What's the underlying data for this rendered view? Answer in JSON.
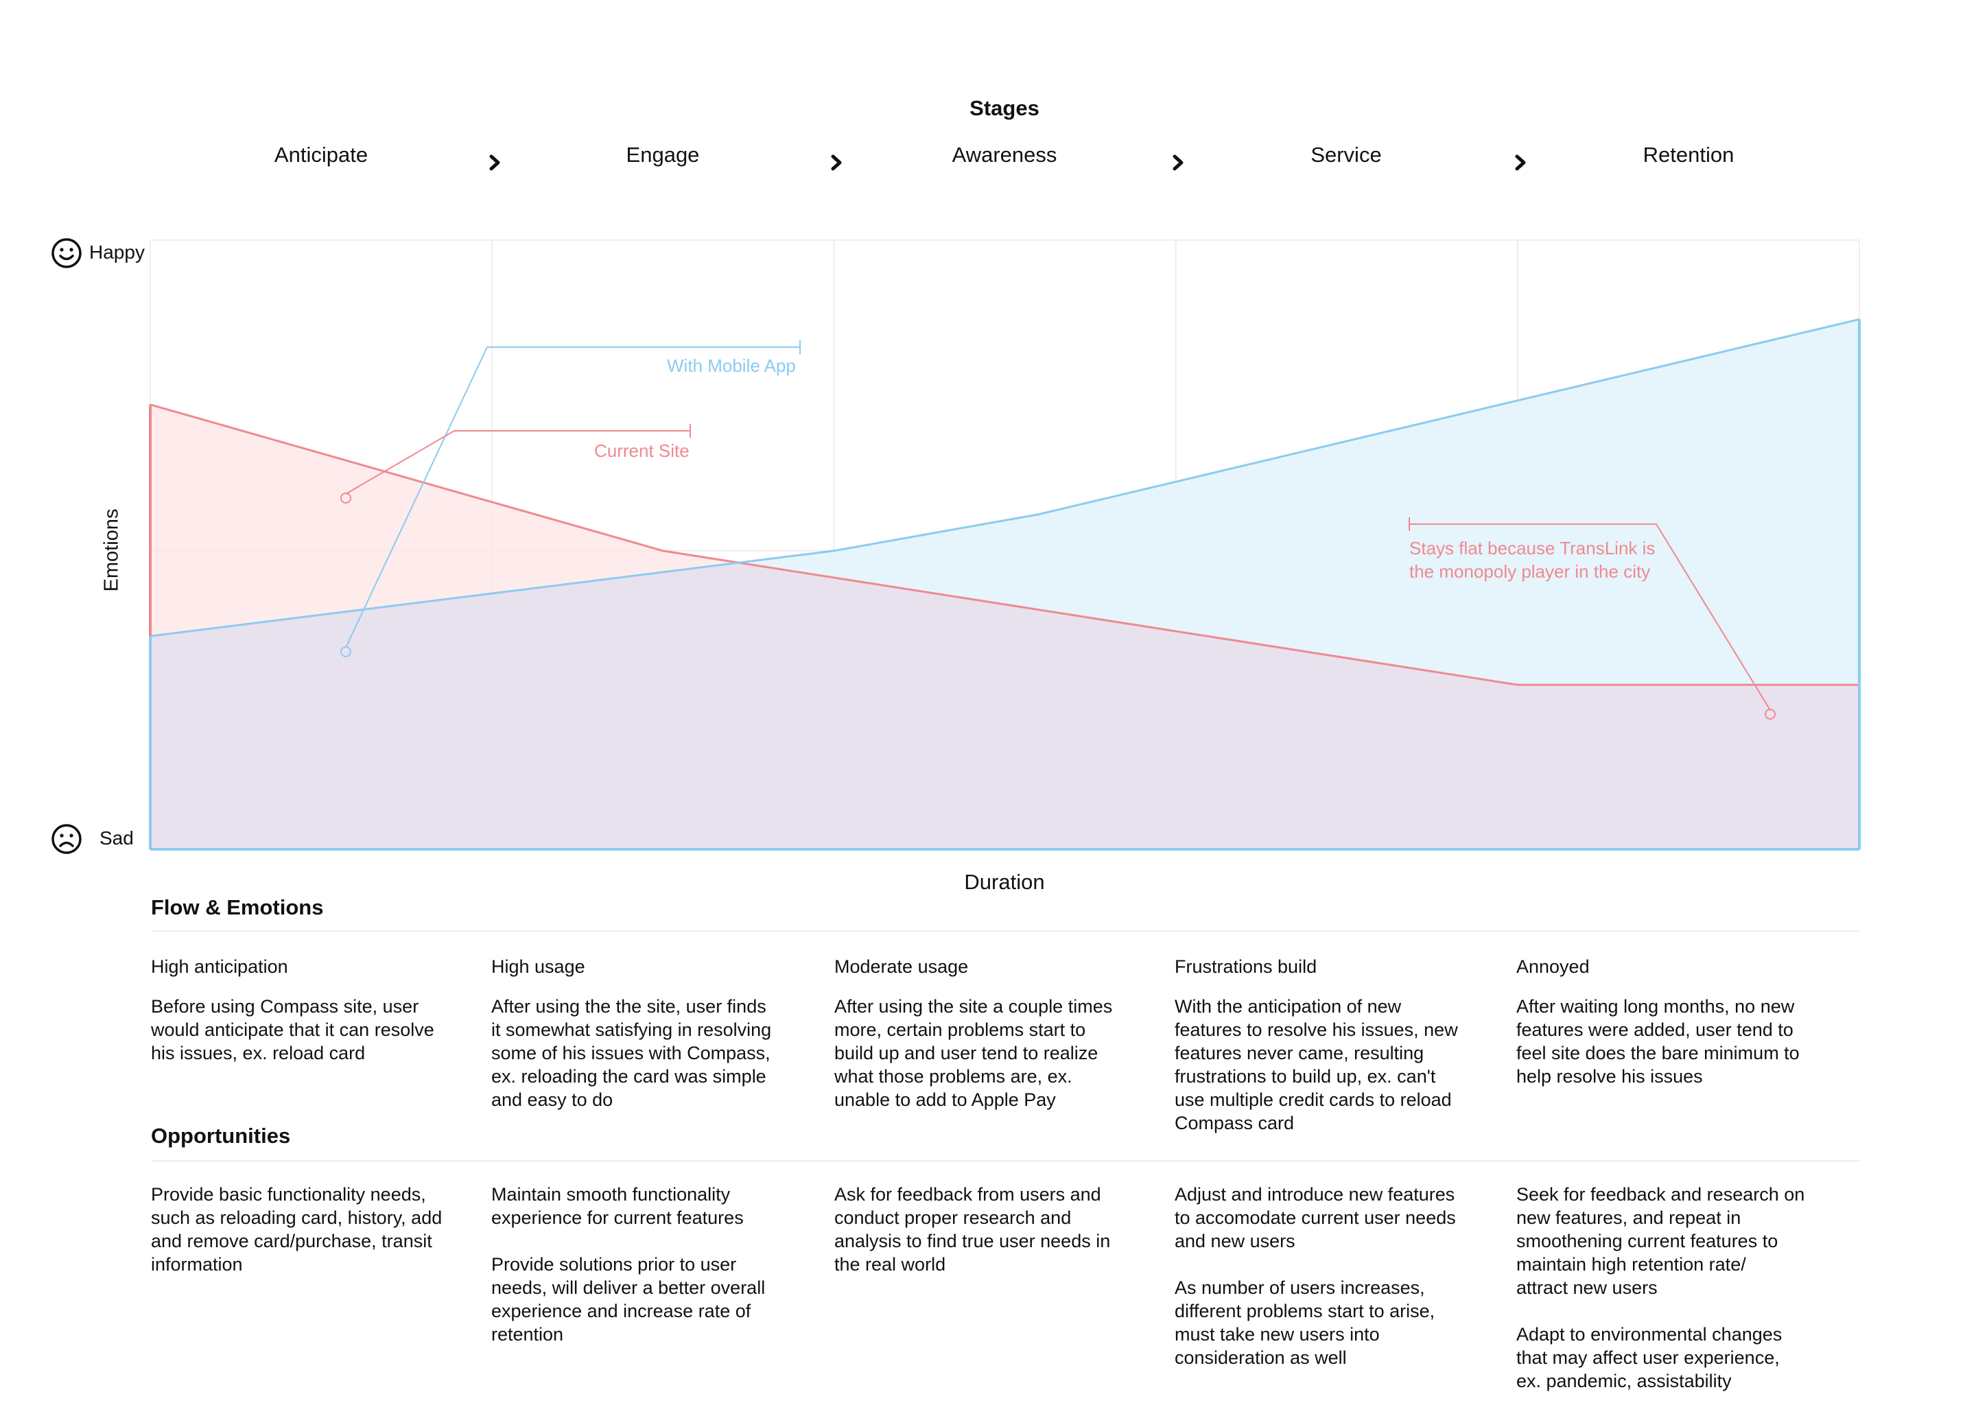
{
  "stages": {
    "title": "Stages",
    "items": [
      "Anticipate",
      "Engage",
      "Awareness",
      "Service",
      "Retention"
    ]
  },
  "axis": {
    "y_top": "Happy",
    "y_bottom": "Sad",
    "y_label": "Emotions",
    "x_label": "Duration",
    "happy_icon": "smile-icon",
    "sad_icon": "frown-icon"
  },
  "colors": {
    "with_mobile_app": "#8ccbef",
    "current_site": "#ef8a8f",
    "with_mobile_app_fill": "#e6f4fc",
    "current_site_fill": "#fde6e7",
    "overlap_fill": "#e8e2ee"
  },
  "annotations": {
    "with_mobile_app": "With Mobile App",
    "current_site": "Current Site",
    "flat_note_line1": "Stays flat because TransLink is",
    "flat_note_line2": "the monopoly player in the city"
  },
  "chart_data": {
    "type": "area",
    "x": [
      "Anticipate",
      "",
      "Engage",
      "",
      "Awareness",
      "",
      "Service",
      "",
      "Retention",
      ""
    ],
    "xlabel": "Duration",
    "ylabel": "Emotions",
    "ylim": [
      0,
      100
    ],
    "series": [
      {
        "name": "Current Site",
        "points": [
          [
            0,
            73
          ],
          [
            1.5,
            49
          ],
          [
            4,
            27
          ],
          [
            4.8,
            27
          ],
          [
            5,
            27
          ]
        ]
      },
      {
        "name": "With Mobile App",
        "points": [
          [
            0,
            35
          ],
          [
            1,
            42
          ],
          [
            2,
            49
          ],
          [
            2.6,
            55
          ],
          [
            5,
            87
          ]
        ]
      }
    ]
  },
  "flow": {
    "title": "Flow & Emotions",
    "columns": [
      {
        "heading": "High anticipation",
        "lines": [
          "Before using Compass site, user",
          "would anticipate that it can resolve",
          "his issues, ex. reload card"
        ]
      },
      {
        "heading": "High usage",
        "lines": [
          "After using the the site, user finds",
          "it somewhat satisfying in resolving",
          "some of his issues with Compass,",
          "ex. reloading the card was simple",
          "and easy to do"
        ]
      },
      {
        "heading": "Moderate usage",
        "lines": [
          "After using the site a couple times",
          "more, certain problems start to",
          "build up and user tend to realize",
          "what those problems are, ex.",
          "unable to add to Apple Pay"
        ]
      },
      {
        "heading": "Frustrations build",
        "lines": [
          "With the anticipation of new",
          "features to resolve his issues, new",
          "features never came, resulting",
          "frustrations to build up, ex. can't",
          "use multiple credit cards to reload",
          "Compass card"
        ]
      },
      {
        "heading": "Annoyed",
        "lines": [
          "After waiting long months, no new",
          "features were added, user tend to",
          "feel site does the bare minimum to",
          "help resolve his issues"
        ]
      }
    ]
  },
  "opportunities": {
    "title": "Opportunities",
    "columns": [
      {
        "paragraphs": [
          [
            "Provide basic functionality needs,",
            "such as reloading card, history, add",
            "and remove card/purchase, transit",
            "information"
          ]
        ]
      },
      {
        "paragraphs": [
          [
            "Maintain smooth functionality",
            "experience for current features"
          ],
          [
            "Provide solutions prior to user",
            "needs, will deliver a better overall",
            "experience and increase rate of",
            "retention"
          ]
        ]
      },
      {
        "paragraphs": [
          [
            "Ask for feedback from users and",
            "conduct proper research and",
            "analysis to find true user needs in",
            "the real world"
          ]
        ]
      },
      {
        "paragraphs": [
          [
            "Adjust and introduce new features",
            "to accomodate current user needs",
            "and new users"
          ],
          [
            "As number of users increases,",
            "different problems start to arise,",
            "must take new users into",
            "consideration as well"
          ]
        ]
      },
      {
        "paragraphs": [
          [
            "Seek for feedback and research on",
            "new features, and repeat in",
            "smoothening current features to",
            "maintain high retention rate/",
            "attract new users"
          ],
          [
            "Adapt to environmental changes",
            "that may affect user experience,",
            "ex. pandemic, assistability"
          ]
        ]
      }
    ]
  }
}
